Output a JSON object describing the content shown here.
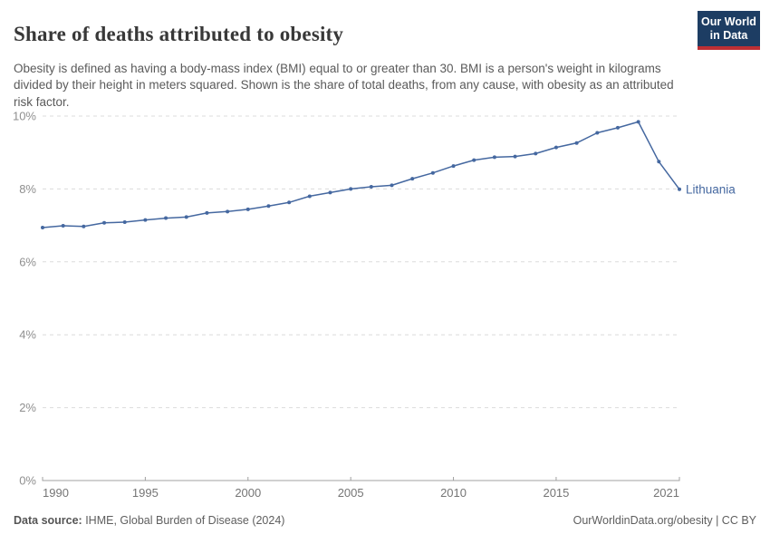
{
  "header": {
    "title": "Share of deaths attributed to obesity",
    "subtitle": "Obesity is defined as having a body-mass index (BMI) equal to or greater than 30. BMI is a person's weight in kilograms divided by their height in meters squared. Shown is the share of total deaths, from any cause, with obesity as an attributed risk factor.",
    "logo": {
      "line1": "Our World",
      "line2": "in Data",
      "bg_color": "#1d3d63",
      "accent_color": "#bc2f34"
    }
  },
  "chart_data": {
    "type": "line",
    "title": "Share of deaths attributed to obesity",
    "x": [
      1990,
      1991,
      1992,
      1993,
      1994,
      1995,
      1996,
      1997,
      1998,
      1999,
      2000,
      2001,
      2002,
      2003,
      2004,
      2005,
      2006,
      2007,
      2008,
      2009,
      2010,
      2011,
      2012,
      2013,
      2014,
      2015,
      2016,
      2017,
      2018,
      2019,
      2020,
      2021
    ],
    "series": [
      {
        "name": "Lithuania",
        "color": "#4568a0",
        "values": [
          6.94,
          6.99,
          6.97,
          7.07,
          7.09,
          7.15,
          7.2,
          7.23,
          7.34,
          7.38,
          7.44,
          7.53,
          7.63,
          7.8,
          7.9,
          8.0,
          8.06,
          8.1,
          8.28,
          8.44,
          8.63,
          8.79,
          8.87,
          8.89,
          8.97,
          9.14,
          9.26,
          9.54,
          9.68,
          9.84,
          8.75,
          7.99
        ]
      }
    ],
    "end_label": "Lithuania",
    "x_ticks": [
      1990,
      1995,
      2000,
      2005,
      2010,
      2015,
      2021
    ],
    "y_ticks": [
      0,
      2,
      4,
      6,
      8,
      10
    ],
    "y_tick_suffix": "%",
    "xlim": [
      1990,
      2021
    ],
    "ylim": [
      0,
      10
    ],
    "grid": "horizontal-dashed",
    "grid_color": "#dcdcdc",
    "axis_color": "#a0a0a0",
    "y_label_color": "#8f8f8f",
    "x_label_color": "#757575"
  },
  "footer": {
    "source_label": "Data source:",
    "source_value": " IHME, Global Burden of Disease (2024)",
    "right_text": "OurWorldinData.org/obesity | CC BY"
  }
}
